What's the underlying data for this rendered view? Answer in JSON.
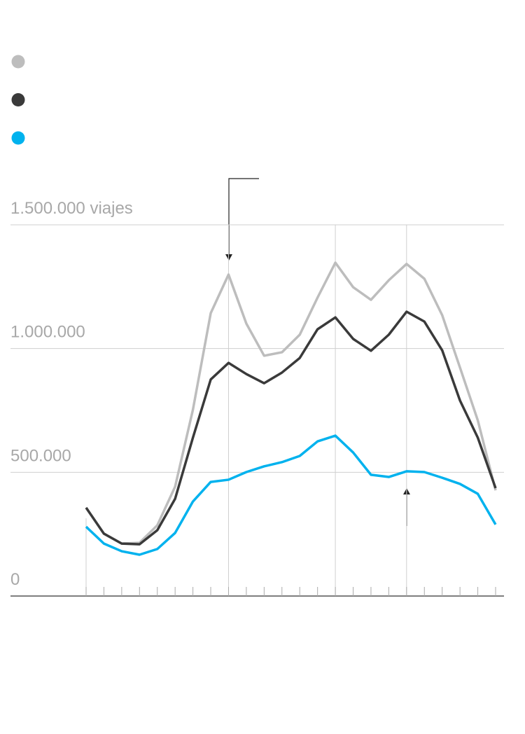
{
  "chart_data": {
    "type": "line",
    "categories": [
      null,
      null,
      null,
      null,
      null,
      null,
      null,
      null,
      null,
      null,
      null,
      null,
      null,
      null,
      null,
      null,
      null,
      null,
      null,
      null,
      null,
      null,
      null,
      null
    ],
    "series": [
      {
        "color": "#bdbdbd",
        "values": [
          357000,
          252000,
          212000,
          215000,
          286000,
          442000,
          753000,
          1143000,
          1299000,
          1101000,
          971000,
          985000,
          1056000,
          1206000,
          1347000,
          1248000,
          1197000,
          1276000,
          1342000,
          1282000,
          1135000,
          923000,
          710000,
          427000
        ]
      },
      {
        "color": "#3a3a3a",
        "values": [
          357000,
          252000,
          212000,
          209000,
          266000,
          393000,
          640000,
          875000,
          942000,
          897000,
          860000,
          903000,
          962000,
          1078000,
          1126000,
          1039000,
          991000,
          1056000,
          1149000,
          1109000,
          993000,
          790000,
          640000,
          436000
        ]
      },
      {
        "color": "#00b2ee",
        "values": [
          280000,
          212000,
          181000,
          167000,
          190000,
          255000,
          382000,
          461000,
          470000,
          501000,
          524000,
          541000,
          566000,
          625000,
          648000,
          580000,
          490000,
          481000,
          504000,
          501000,
          478000,
          453000,
          413000,
          289000
        ]
      }
    ],
    "ylim": [
      0,
      1500000
    ],
    "yticks": [
      0,
      {
        "value": 500000,
        "label": "500.000"
      },
      {
        "value": 1000000,
        "label": "1.000.000"
      },
      {
        "value": 1500000,
        "label": "1.500.000 viajes"
      }
    ],
    "grid": true
  }
}
